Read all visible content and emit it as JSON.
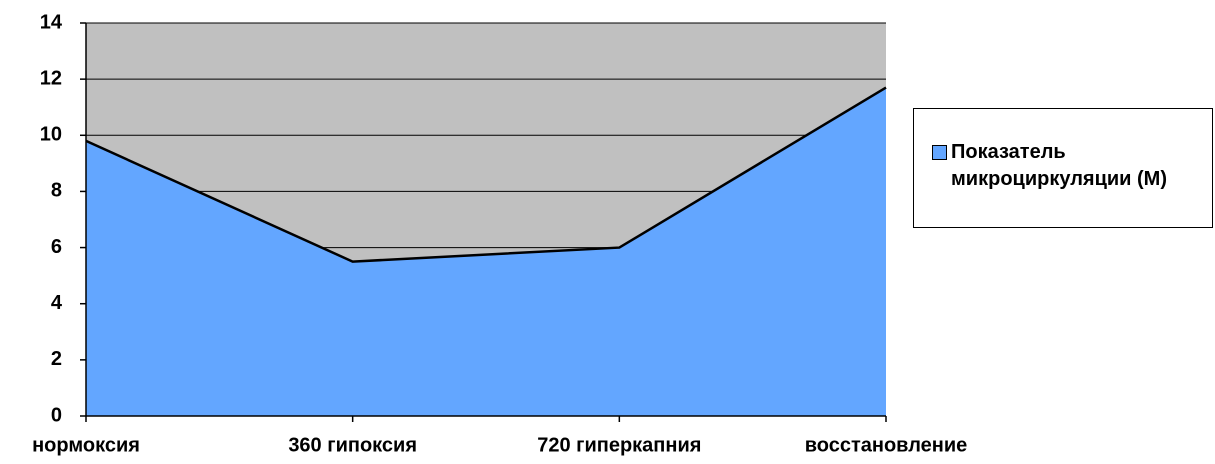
{
  "chart_data": {
    "type": "area",
    "categories": [
      "нормоксия",
      "360 гипоксия",
      "720 гиперкапния",
      "восстановление"
    ],
    "series": [
      {
        "name": "Показатель микроциркуляции (М)",
        "color": "#63a6ff",
        "values": [
          9.8,
          5.5,
          6,
          11.7
        ]
      }
    ],
    "ylim": [
      0,
      14
    ],
    "yticks": [
      0,
      2,
      4,
      6,
      8,
      10,
      12,
      14
    ],
    "grid": true,
    "plot_background": "#c0c0c0",
    "legend": "right"
  }
}
